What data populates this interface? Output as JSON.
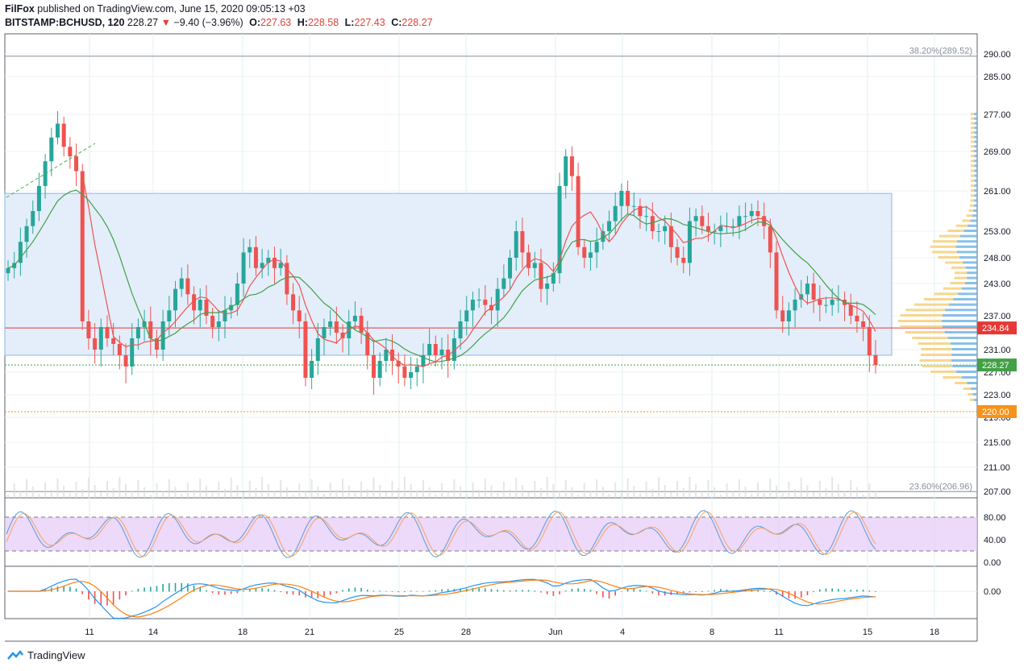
{
  "header": {
    "publisher": "FilFox",
    "published_text": "published on TradingView.com, June 15, 2020 09:05:13 +03",
    "symbol": "BITSTAMP:BCHUSD, 120",
    "last": "228.27",
    "change": "−9.40 (−3.96%)",
    "o_label": "O:",
    "o_value": "227.63",
    "h_label": "H:",
    "h_value": "228.58",
    "l_label": "L:",
    "l_value": "227.43",
    "c_label": "C:",
    "c_value": "228.27"
  },
  "footer": {
    "brand": "TradingView"
  },
  "colors": {
    "up": "#26a69a",
    "down": "#ef5350",
    "range_fill": "#e3eefa",
    "range_line": "#8fb5e6",
    "sma_fast": "#ef5350",
    "sma_slow": "#43a047",
    "stoch_band": "#e6c9f7",
    "stoch_k": "#5b9bd5",
    "stoch_d": "#f4a462",
    "macd": "#2196f3",
    "signal": "#ff7f0e",
    "tag_red": "#e53935",
    "tag_green": "#43a047",
    "tag_orange": "#f7931a"
  },
  "chart_data": {
    "type": "candlestick",
    "y_ticks": [
      "290.00",
      "285.00",
      "277.00",
      "269.00",
      "261.00",
      "253.00",
      "248.00",
      "243.00",
      "237.00",
      "231.00",
      "227.00",
      "223.00",
      "219.00",
      "215.00",
      "211.00",
      "207.00"
    ],
    "y_tick_values": [
      290,
      285,
      277,
      269,
      261,
      253,
      248,
      243,
      237,
      231,
      227,
      223,
      219,
      215,
      211,
      207
    ],
    "x_ticks": [
      "11",
      "14",
      "18",
      "21",
      "25",
      "28",
      "Jun",
      "4",
      "8",
      "11",
      "15",
      "18"
    ],
    "fib_levels": [
      {
        "label": "38.20%(289.52)",
        "value": 289.52
      },
      {
        "label": "23.60%(206.96)",
        "value": 206.96
      }
    ],
    "range_box": {
      "top": 260.5,
      "bottom": 230.0
    },
    "horizontal_levels": [
      {
        "label": "234.84",
        "value": 234.84,
        "color": "red"
      },
      {
        "label": "228.27",
        "value": 228.27,
        "color": "green"
      },
      {
        "label": "220.00",
        "value": 220.0,
        "color": "orange"
      }
    ],
    "closes": [
      246,
      247,
      251,
      254,
      257,
      262,
      267,
      272,
      275,
      270,
      268,
      265,
      236,
      233,
      231,
      235,
      233,
      232,
      230,
      228,
      233,
      235,
      236,
      233,
      231,
      236,
      238,
      242,
      244,
      241,
      238,
      240,
      237,
      235,
      236,
      238,
      239,
      243,
      249,
      250,
      246,
      247,
      248,
      246,
      247,
      241,
      238,
      236,
      226,
      229,
      233,
      235,
      236,
      234,
      233,
      236,
      237,
      234,
      230,
      226,
      229,
      231,
      229,
      228,
      226,
      227,
      228,
      230,
      232,
      230,
      231,
      229,
      233,
      236,
      238,
      240,
      240,
      239,
      238,
      242,
      244,
      248,
      253,
      249,
      246,
      247,
      242,
      243,
      245,
      262,
      268,
      264,
      250,
      248,
      249,
      251,
      253,
      255,
      258,
      261,
      258,
      258,
      256,
      256,
      253,
      253,
      254,
      250,
      248,
      247,
      255,
      256,
      254,
      253,
      253,
      254,
      254,
      254,
      256,
      256,
      257,
      256,
      254,
      249,
      238,
      236,
      238,
      240,
      241,
      243,
      240,
      239,
      239,
      240,
      240,
      239,
      237,
      236,
      235,
      230,
      228.27
    ],
    "stoch": {
      "levels": [
        80,
        20
      ],
      "ticks": [
        "80.00",
        "40.00",
        "0.00"
      ],
      "tick_values": [
        80,
        40,
        0
      ]
    },
    "macd": {
      "ticks": [
        "0.00"
      ],
      "tick_values": [
        0
      ]
    }
  }
}
